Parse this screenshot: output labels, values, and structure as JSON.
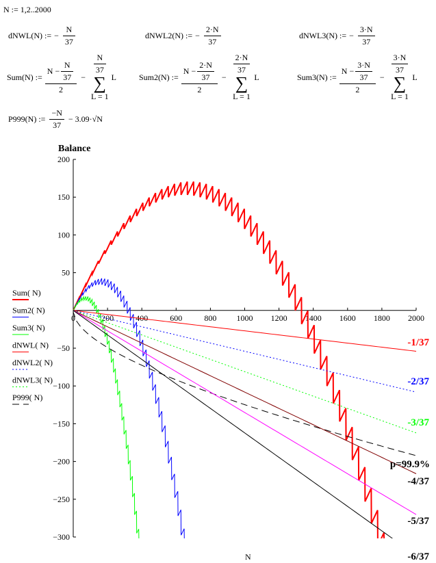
{
  "worksheet": {
    "range_def": "N := 1,2..2000",
    "dnwl": [
      {
        "lhs": "dNWL(N) :=",
        "sign": "−",
        "num": "N",
        "den": "37"
      },
      {
        "lhs": "dNWL2(N) :=",
        "sign": "−",
        "num": "2·N",
        "den": "37"
      },
      {
        "lhs": "dNWL3(N) :=",
        "sign": "−",
        "num": "3·N",
        "den": "37"
      }
    ],
    "sums": [
      {
        "lhs": "Sum(N) :=",
        "num_lead": "N −",
        "inner_num": "N",
        "inner_den": "37",
        "den": "2",
        "minus": "−",
        "upper_num": "N",
        "upper_den": "37",
        "lower": "L = 1",
        "body": "L"
      },
      {
        "lhs": "Sum2(N) :=",
        "num_lead": "N −",
        "inner_num": "2·N",
        "inner_den": "37",
        "den": "2",
        "minus": "−",
        "upper_num": "2·N",
        "upper_den": "37",
        "lower": "L = 1",
        "body": "L"
      },
      {
        "lhs": "Sum3(N) :=",
        "num_lead": "N −",
        "inner_num": "3·N",
        "inner_den": "37",
        "den": "2",
        "minus": "−",
        "upper_num": "3·N",
        "upper_den": "37",
        "lower": "L = 1",
        "body": "L"
      }
    ],
    "p999": {
      "lhs": "P999(N) :=",
      "num": "−N",
      "den": "37",
      "rest": "− 3.09·√N"
    }
  },
  "chart_data": {
    "type": "line",
    "title": "",
    "xlabel": "N",
    "ylabel": "Balance",
    "x_range": [
      1,
      2000
    ],
    "xlim": [
      0,
      2000
    ],
    "ylim": [
      -300,
      200
    ],
    "xticks": [
      "0",
      "200",
      "400",
      "600",
      "800",
      "1000",
      "1200",
      "1400",
      "1600",
      "1800",
      "2000"
    ],
    "yticks": [
      "200",
      "150",
      "100",
      "50",
      "-50",
      "-100",
      "-150",
      "-200",
      "-250",
      "-300"
    ],
    "grid": false,
    "legend_placement": "left",
    "series": [
      {
        "name": "Sum(N)",
        "kind": "sum",
        "m": 1,
        "color": "#ff0000",
        "style": "solid-thick"
      },
      {
        "name": "Sum2(N)",
        "kind": "sum",
        "m": 2,
        "color": "#0000ff",
        "style": "solid"
      },
      {
        "name": "Sum3(N)",
        "kind": "sum",
        "m": 3,
        "color": "#00ff00",
        "style": "solid"
      },
      {
        "name": "dNWL(N)",
        "kind": "linear",
        "m": 1,
        "color": "#ff0000",
        "style": "solid",
        "label": "-1/37"
      },
      {
        "name": "dNWL2(N)",
        "kind": "linear",
        "m": 2,
        "color": "#0000ff",
        "style": "dotted",
        "label": "-2/37"
      },
      {
        "name": "dNWL3(N)",
        "kind": "linear",
        "m": 3,
        "color": "#00ff00",
        "style": "dotted",
        "label": "-3/37"
      },
      {
        "name": "P999(N)",
        "kind": "p999",
        "m": 1,
        "color": "#000000",
        "style": "dashed",
        "label": "p=99.9%"
      },
      {
        "kind": "linear",
        "m": 4,
        "color": "#800000",
        "style": "solid",
        "label": "-4/37"
      },
      {
        "kind": "linear",
        "m": 5,
        "color": "#ff00ff",
        "style": "solid",
        "label": "-5/37"
      },
      {
        "kind": "linear",
        "m": 6,
        "color": "#000000",
        "style": "solid",
        "label": "-6/37"
      }
    ],
    "legend": [
      "Sum( N)",
      "Sum2( N)",
      "Sum3( N)",
      "dNWL( N)",
      "dNWL2( N)",
      "dNWL3( N)",
      "P999( N)"
    ]
  }
}
